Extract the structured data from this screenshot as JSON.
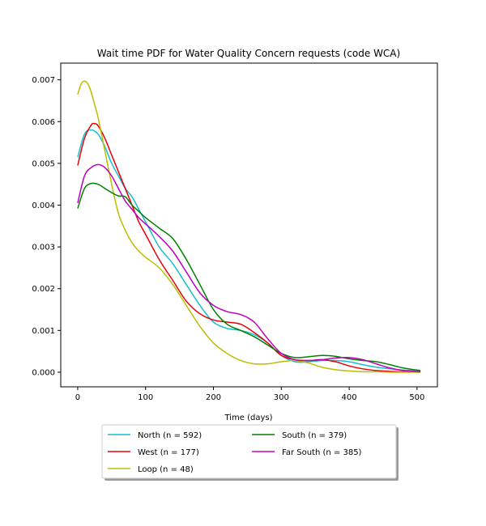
{
  "chart_data": {
    "type": "line",
    "title": "Wait time PDF for Water Quality Concern  requests (code WCA)",
    "xlabel": "Time (days)",
    "ylabel": "",
    "xlim": [
      -25,
      530
    ],
    "ylim": [
      -0.00035,
      0.0074
    ],
    "xticks": [
      0,
      100,
      200,
      300,
      400,
      500
    ],
    "yticks": [
      0.0,
      0.001,
      0.002,
      0.003,
      0.004,
      0.005,
      0.006,
      0.007
    ],
    "xtick_labels": [
      "0",
      "100",
      "200",
      "300",
      "400",
      "500"
    ],
    "ytick_labels": [
      "0.000",
      "0.001",
      "0.002",
      "0.003",
      "0.004",
      "0.005",
      "0.006",
      "0.007"
    ],
    "grid": false,
    "legend_placement": "below",
    "series": [
      {
        "name": "North (n = 592)",
        "color": "#17becf",
        "x": [
          0,
          10,
          20,
          30,
          40,
          50,
          60,
          70,
          80,
          90,
          100,
          120,
          140,
          160,
          180,
          200,
          220,
          240,
          260,
          280,
          300,
          320,
          340,
          360,
          380,
          400,
          420,
          440,
          460,
          480,
          505
        ],
        "y": [
          0.00515,
          0.0057,
          0.0058,
          0.0057,
          0.0054,
          0.005,
          0.0047,
          0.0044,
          0.0042,
          0.0039,
          0.0036,
          0.003,
          0.0026,
          0.0021,
          0.0016,
          0.0012,
          0.00105,
          0.001,
          0.0009,
          0.0007,
          0.0004,
          0.00025,
          0.00025,
          0.00028,
          0.00028,
          0.00025,
          0.00018,
          0.00012,
          8e-05,
          5e-05,
          3e-05
        ]
      },
      {
        "name": "West (n = 177)",
        "color": "#e8000b",
        "x": [
          0,
          10,
          20,
          25,
          30,
          40,
          50,
          60,
          70,
          80,
          90,
          100,
          120,
          140,
          160,
          180,
          200,
          220,
          240,
          260,
          280,
          300,
          320,
          340,
          360,
          380,
          400,
          420,
          440,
          460,
          480,
          505
        ],
        "y": [
          0.00495,
          0.0056,
          0.00592,
          0.00595,
          0.0059,
          0.0056,
          0.0052,
          0.0048,
          0.0044,
          0.004,
          0.0036,
          0.0033,
          0.0027,
          0.0022,
          0.0017,
          0.0014,
          0.00125,
          0.0012,
          0.00115,
          0.00095,
          0.0007,
          0.0004,
          0.0003,
          0.00028,
          0.0003,
          0.00025,
          0.00015,
          8e-05,
          4e-05,
          2e-05,
          1e-05,
          1e-05
        ]
      },
      {
        "name": "Loop (n = 48)",
        "color": "#bcbd00",
        "x": [
          0,
          5,
          10,
          15,
          20,
          25,
          30,
          40,
          50,
          60,
          70,
          80,
          90,
          100,
          120,
          140,
          160,
          180,
          200,
          220,
          240,
          260,
          280,
          300,
          320,
          340,
          360,
          380,
          400,
          420,
          440,
          460,
          480,
          505
        ],
        "y": [
          0.00665,
          0.0069,
          0.00697,
          0.0069,
          0.0067,
          0.0064,
          0.0061,
          0.0053,
          0.0045,
          0.0038,
          0.0034,
          0.0031,
          0.0029,
          0.00275,
          0.0025,
          0.0021,
          0.0016,
          0.0011,
          0.0007,
          0.00045,
          0.00028,
          0.0002,
          0.0002,
          0.00025,
          0.00028,
          0.00022,
          0.00012,
          6e-05,
          3e-05,
          1e-05,
          1e-05,
          0.0,
          0.0,
          0.0
        ]
      },
      {
        "name": "South (n = 379)",
        "color": "#008000",
        "x": [
          0,
          10,
          20,
          30,
          40,
          50,
          60,
          70,
          80,
          90,
          100,
          120,
          140,
          160,
          180,
          200,
          220,
          240,
          260,
          280,
          300,
          320,
          340,
          360,
          380,
          400,
          420,
          440,
          460,
          480,
          505
        ],
        "y": [
          0.00392,
          0.0044,
          0.00452,
          0.0045,
          0.0044,
          0.0043,
          0.00422,
          0.0042,
          0.004,
          0.00385,
          0.0037,
          0.00345,
          0.0032,
          0.0027,
          0.0021,
          0.0015,
          0.00115,
          0.001,
          0.00085,
          0.00065,
          0.00045,
          0.00035,
          0.00037,
          0.0004,
          0.00038,
          0.00032,
          0.00028,
          0.00025,
          0.00018,
          0.0001,
          4e-05
        ]
      },
      {
        "name": "Far South (n = 385)",
        "color": "#bf00bf",
        "x": [
          0,
          10,
          20,
          30,
          40,
          50,
          60,
          70,
          80,
          90,
          100,
          120,
          140,
          160,
          180,
          200,
          220,
          240,
          260,
          280,
          300,
          320,
          340,
          360,
          380,
          400,
          420,
          440,
          460,
          480,
          505
        ],
        "y": [
          0.00405,
          0.0047,
          0.0049,
          0.00497,
          0.0049,
          0.0047,
          0.0044,
          0.0041,
          0.0039,
          0.0037,
          0.00355,
          0.00325,
          0.0029,
          0.0024,
          0.0019,
          0.0016,
          0.00145,
          0.00138,
          0.0012,
          0.0008,
          0.00045,
          0.0003,
          0.00028,
          0.0003,
          0.00034,
          0.00035,
          0.0003,
          0.0002,
          0.0001,
          4e-05,
          1e-05
        ]
      }
    ]
  }
}
